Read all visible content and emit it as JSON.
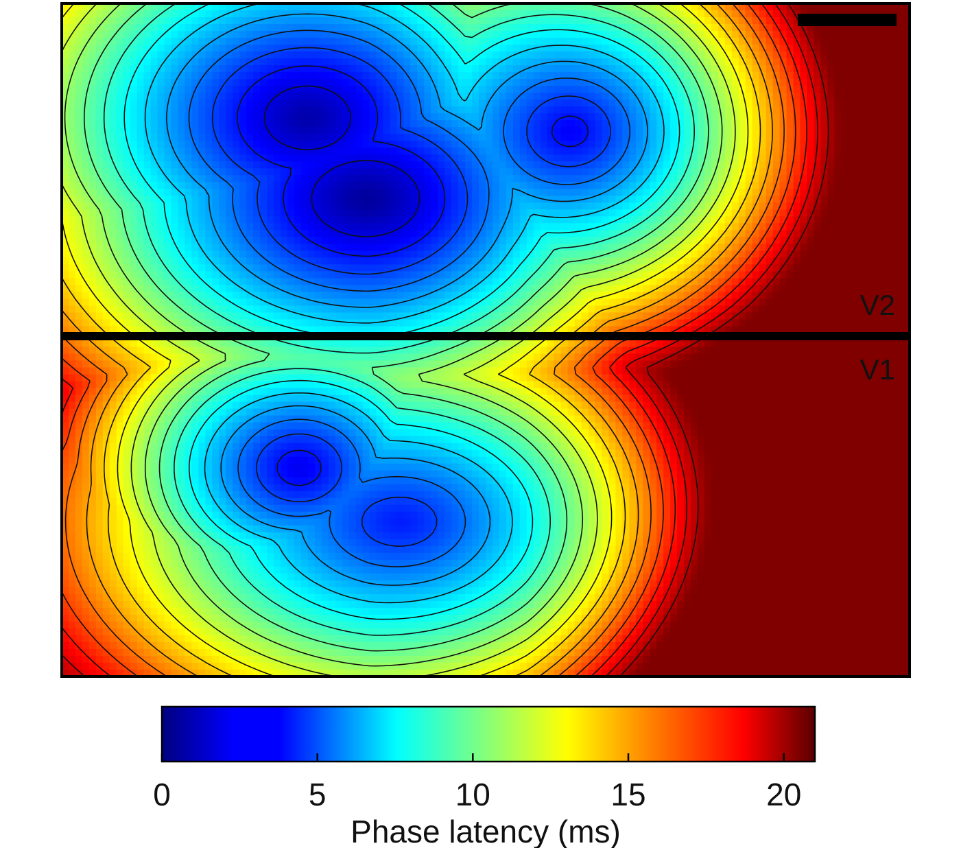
{
  "chart_data": {
    "type": "heatmap",
    "regions": [
      {
        "name": "V2"
      },
      {
        "name": "V1"
      }
    ],
    "colorbar": {
      "label": "Phase latency (ms)",
      "ticks": [
        0,
        5,
        10,
        15,
        20
      ],
      "range": [
        0,
        21
      ],
      "colormap": "jet"
    },
    "latency_blobs": [
      {
        "region": "V2",
        "center": [
          0.29,
          0.17
        ],
        "minimum_ms": 0.8
      },
      {
        "region": "V2",
        "center": [
          0.36,
          0.29
        ],
        "minimum_ms": 0.5
      },
      {
        "region": "V2",
        "center": [
          0.6,
          0.19
        ],
        "minimum_ms": 2.4
      },
      {
        "region": "V1",
        "center": [
          0.28,
          0.69
        ],
        "minimum_ms": 2.2
      },
      {
        "region": "V1",
        "center": [
          0.4,
          0.77
        ],
        "minimum_ms": 3.1
      }
    ],
    "scale_bar": true,
    "contour_lines": true
  },
  "colors": {
    "boundary": "#000000",
    "contour": "#111111"
  }
}
